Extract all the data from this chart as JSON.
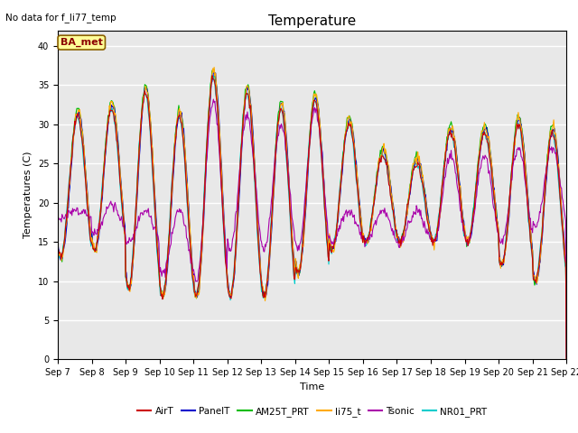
{
  "title": "Temperature",
  "ylabel": "Temperatures (C)",
  "xlabel": "Time",
  "annotation": "No data for f_li77_temp",
  "ba_met_label": "BA_met",
  "ylim": [
    0,
    42
  ],
  "yticks": [
    0,
    5,
    10,
    15,
    20,
    25,
    30,
    35,
    40
  ],
  "plot_bg_color": "#e8e8e8",
  "series_colors": {
    "AirT": "#cc0000",
    "PanelT": "#0000cc",
    "AM25T_PRT": "#00bb00",
    "li75_t": "#ffaa00",
    "Tsonic": "#aa00aa",
    "NR01_PRT": "#00cccc"
  },
  "n_days": 15,
  "start_day": 7,
  "end_day": 22,
  "peaks": [
    31,
    32,
    34,
    31,
    36,
    34,
    32,
    33,
    30,
    26,
    25,
    29,
    29,
    30,
    29
  ],
  "troughs": [
    13,
    14,
    9,
    8,
    8,
    8,
    8,
    11,
    14,
    15,
    15,
    15,
    15,
    12,
    10
  ],
  "tsonic_peaks": [
    19,
    20,
    19,
    19,
    33,
    31,
    30,
    32,
    19,
    19,
    19,
    26,
    26,
    27,
    27
  ],
  "tsonic_troughs": [
    18,
    16,
    15,
    11,
    10,
    14,
    14,
    14,
    15,
    15,
    15,
    15,
    15,
    15,
    17
  ]
}
